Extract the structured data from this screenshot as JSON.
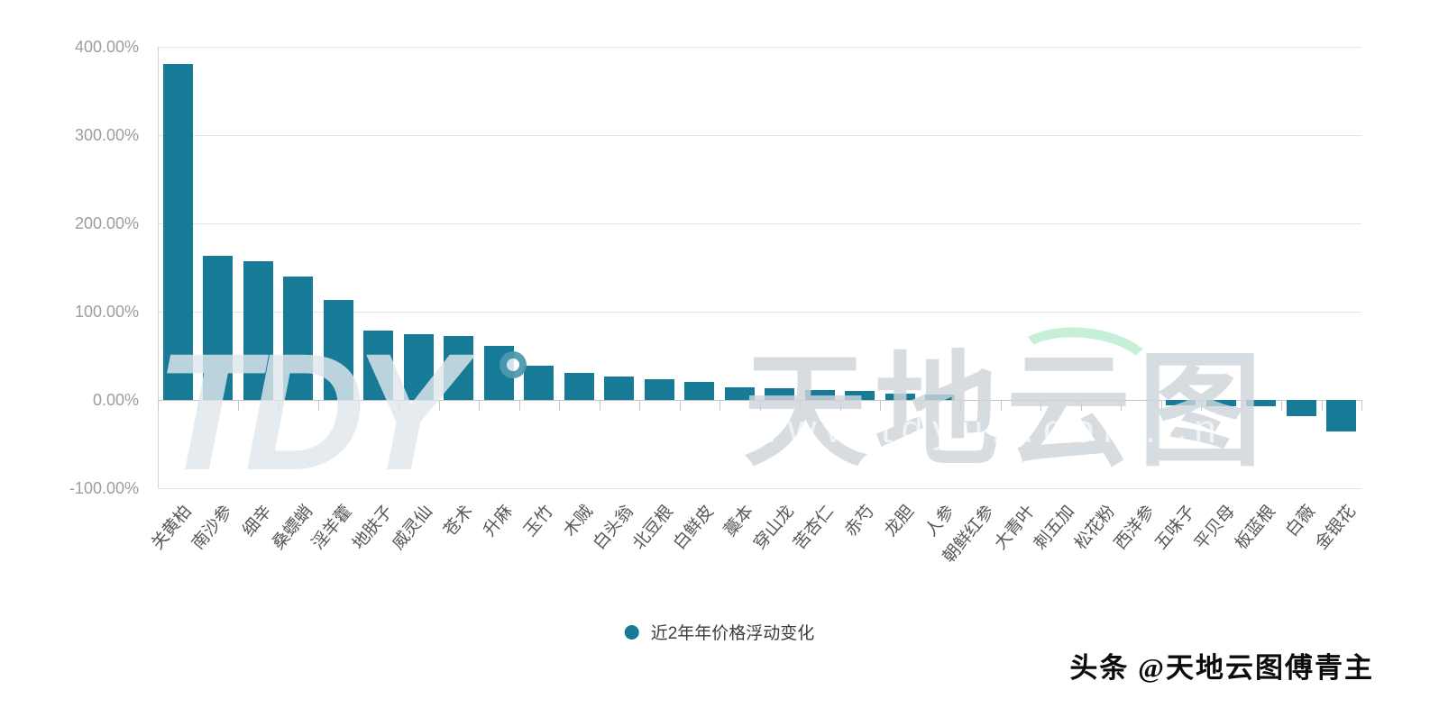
{
  "chart_data": {
    "type": "bar",
    "title": "",
    "categories": [
      "关黄柏",
      "南沙参",
      "细辛",
      "桑螵蛸",
      "淫羊藿",
      "地肤子",
      "威灵仙",
      "苍术",
      "升麻",
      "玉竹",
      "木贼",
      "白头翁",
      "北豆根",
      "白鲜皮",
      "藁本",
      "穿山龙",
      "苦杏仁",
      "赤芍",
      "龙胆",
      "人参",
      "朝鲜红参",
      "大青叶",
      "刺五加",
      "松花粉",
      "西洋参",
      "五味子",
      "平贝母",
      "板蓝根",
      "白薇",
      "金银花"
    ],
    "series": [
      {
        "name": "近2年年价格浮动变化",
        "values": [
          381,
          163,
          157,
          140,
          113,
          79,
          75,
          72,
          61,
          39,
          31,
          27,
          23,
          20,
          14,
          13,
          11,
          10,
          7,
          6,
          0,
          0,
          0,
          0,
          0,
          -6,
          -7,
          -7,
          -18,
          -36
        ]
      }
    ],
    "xlabel": "",
    "ylabel": "",
    "ylim": [
      -100,
      400
    ],
    "y_ticks": [
      "400.00%",
      "300.00%",
      "200.00%",
      "100.00%",
      "0.00%",
      "-100.00%"
    ],
    "grid": true,
    "legend_position": "bottom",
    "bar_color": "#177a96"
  },
  "legend": {
    "label": "近2年年价格浮动变化"
  },
  "watermark": {
    "logo_text": "TDY",
    "brand_text": "天地云图",
    "url_text": "www.tdyun.com.cn"
  },
  "attribution": {
    "text": "头条 @天地云图傅青主"
  },
  "colors": {
    "bar": "#177a96",
    "gridline": "#e2e4e7",
    "zero_line": "#c4c8cc",
    "y_label": "#9a9ea3",
    "x_label": "#55585c",
    "attribution_text": "#0c0c0c",
    "watermark_gray": "#ced4db",
    "watermark_green": "#96e1b4",
    "background": "#ffffff"
  }
}
